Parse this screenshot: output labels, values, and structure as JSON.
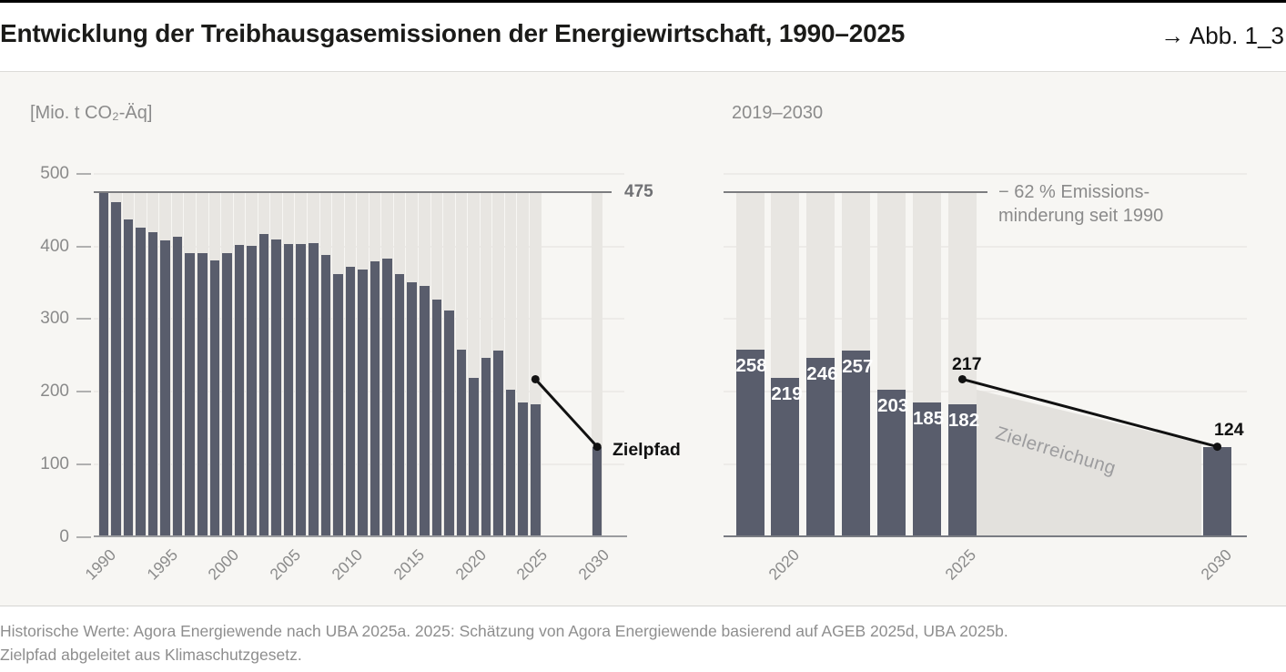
{
  "header": {
    "title": "Entwicklung der Treibhausgasemissionen der Energiewirtschaft, 1990–2025",
    "figure_ref": "→ Abb. 1_3"
  },
  "footer": {
    "line1": "Historische Werte: Agora Energiewende nach UBA 2025a. 2025: Schätzung von Agora Energiewende basierend auf AGEB 2025d, UBA 2025b.",
    "line2": "Zielpfad abgeleitet aus Klimaschutzgesetz."
  },
  "colors": {
    "bar": "#595d6c",
    "background_bar": "#e8e6e2",
    "panel_background": "#f7f6f3",
    "target_wedge": "#e3e1dd",
    "gridline": "#edebe8",
    "axis_text": "#8b8b8b",
    "reference_line": "#7c7d80",
    "annotation_black": "#141414",
    "bar_value_label": "#ffffff"
  },
  "chart_data": [
    {
      "type": "bar",
      "panel_label": "[Mio. t CO₂-Äq]",
      "ylabel": "Mio. t CO2-Äq",
      "ylim": [
        0,
        500
      ],
      "yticks": [
        0,
        100,
        200,
        300,
        400,
        500
      ],
      "grid": true,
      "x": [
        1990,
        1991,
        1992,
        1993,
        1994,
        1995,
        1996,
        1997,
        1998,
        1999,
        2000,
        2001,
        2002,
        2003,
        2004,
        2005,
        2006,
        2007,
        2008,
        2009,
        2010,
        2011,
        2012,
        2013,
        2014,
        2015,
        2016,
        2017,
        2018,
        2019,
        2020,
        2021,
        2022,
        2023,
        2024,
        2025,
        2030
      ],
      "values": [
        475,
        461,
        437,
        426,
        419,
        408,
        413,
        391,
        391,
        380,
        390,
        402,
        401,
        417,
        410,
        403,
        403,
        405,
        388,
        362,
        372,
        368,
        379,
        383,
        362,
        351,
        346,
        327,
        311,
        258,
        219,
        246,
        257,
        203,
        185,
        182,
        124
      ],
      "xtick_labels": [
        "1990",
        "1995",
        "2000",
        "2005",
        "2010",
        "2015",
        "2020",
        "2025",
        "2030"
      ],
      "background_bars_to": 475,
      "reference_line": {
        "value": 475,
        "label": "475"
      },
      "target_path": {
        "label": "Zielpfad",
        "points": [
          {
            "x": 2025,
            "value": 217
          },
          {
            "x": 2030,
            "value": 124
          }
        ]
      }
    },
    {
      "type": "bar",
      "title": "2019–2030",
      "ylim": [
        0,
        500
      ],
      "grid": true,
      "x": [
        2019,
        2020,
        2021,
        2022,
        2023,
        2024,
        2025,
        2030
      ],
      "values": [
        258,
        219,
        246,
        257,
        203,
        185,
        182,
        124
      ],
      "value_labels": [
        "258",
        "219",
        "246",
        "257",
        "203",
        "185",
        "182",
        ""
      ],
      "xtick_labels": [
        "2020",
        "2025",
        "2030"
      ],
      "background_bars_on": [
        2019,
        2020,
        2021,
        2022,
        2023,
        2024,
        2025
      ],
      "background_bars_to": 475,
      "reduction_line": {
        "value": 475,
        "label_line1": "− 62 % Emissions-",
        "label_line2": "minderung seit 1990"
      },
      "target_path": {
        "label": "Zielerreichung",
        "points": [
          {
            "x": 2025,
            "value": 217,
            "label": "217"
          },
          {
            "x": 2030,
            "value": 124,
            "label": "124"
          }
        ]
      }
    }
  ]
}
